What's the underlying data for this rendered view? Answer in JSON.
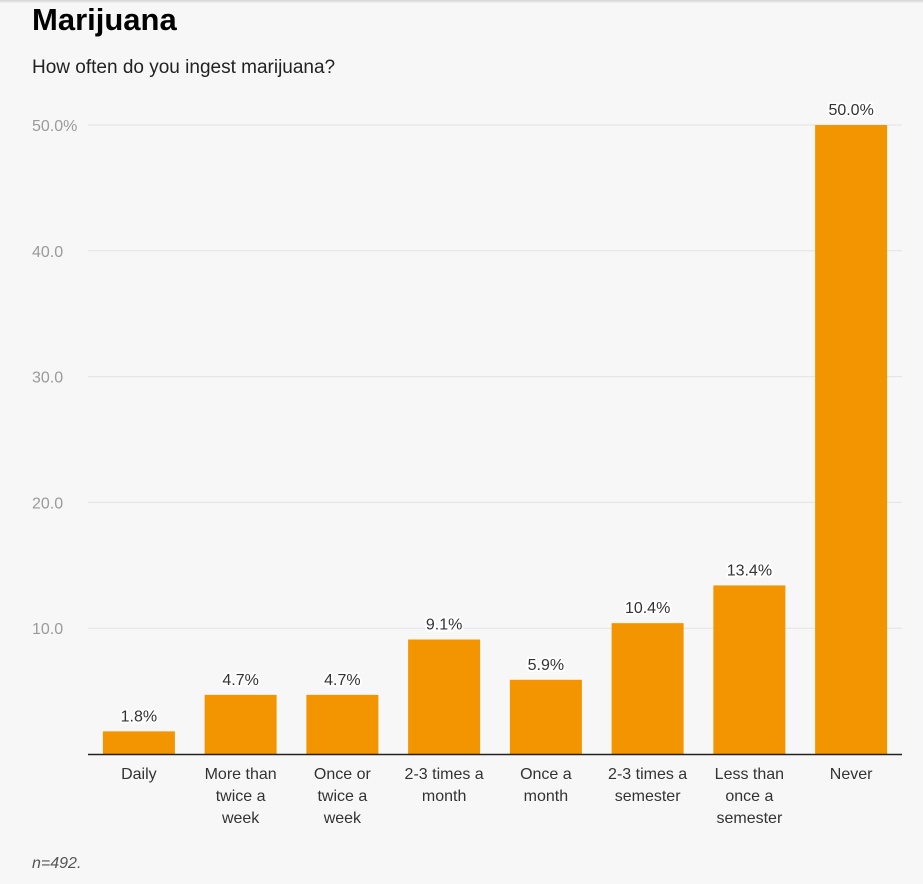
{
  "title": "Marijuana",
  "subtitle": "How often do you ingest marijuana?",
  "note": "n=492.",
  "colors": {
    "bar": "#f29500",
    "grid": "#e3e3e3",
    "axis": "#222222"
  },
  "chart_data": {
    "type": "bar",
    "title": "Marijuana",
    "subtitle": "How often do you ingest marijuana?",
    "xlabel": "",
    "ylabel": "",
    "ylim": [
      0,
      50
    ],
    "grid": true,
    "yticks": [
      {
        "value": 10,
        "label": "10.0"
      },
      {
        "value": 20,
        "label": "20.0"
      },
      {
        "value": 30,
        "label": "30.0"
      },
      {
        "value": 40,
        "label": "40.0"
      },
      {
        "value": 50,
        "label": "50.0%"
      }
    ],
    "categories": [
      [
        "Daily"
      ],
      [
        "More than",
        "twice a",
        "week"
      ],
      [
        "Once or",
        "twice a",
        "week"
      ],
      [
        "2-3 times a",
        "month"
      ],
      [
        "Once a",
        "month"
      ],
      [
        "2-3 times a",
        "semester"
      ],
      [
        "Less than",
        "once a",
        "semester"
      ],
      [
        "Never"
      ]
    ],
    "values": [
      1.8,
      4.7,
      4.7,
      9.1,
      5.9,
      10.4,
      13.4,
      50.0
    ],
    "data_labels": [
      "1.8%",
      "4.7%",
      "4.7%",
      "9.1%",
      "5.9%",
      "10.4%",
      "13.4%",
      "50.0%"
    ]
  }
}
